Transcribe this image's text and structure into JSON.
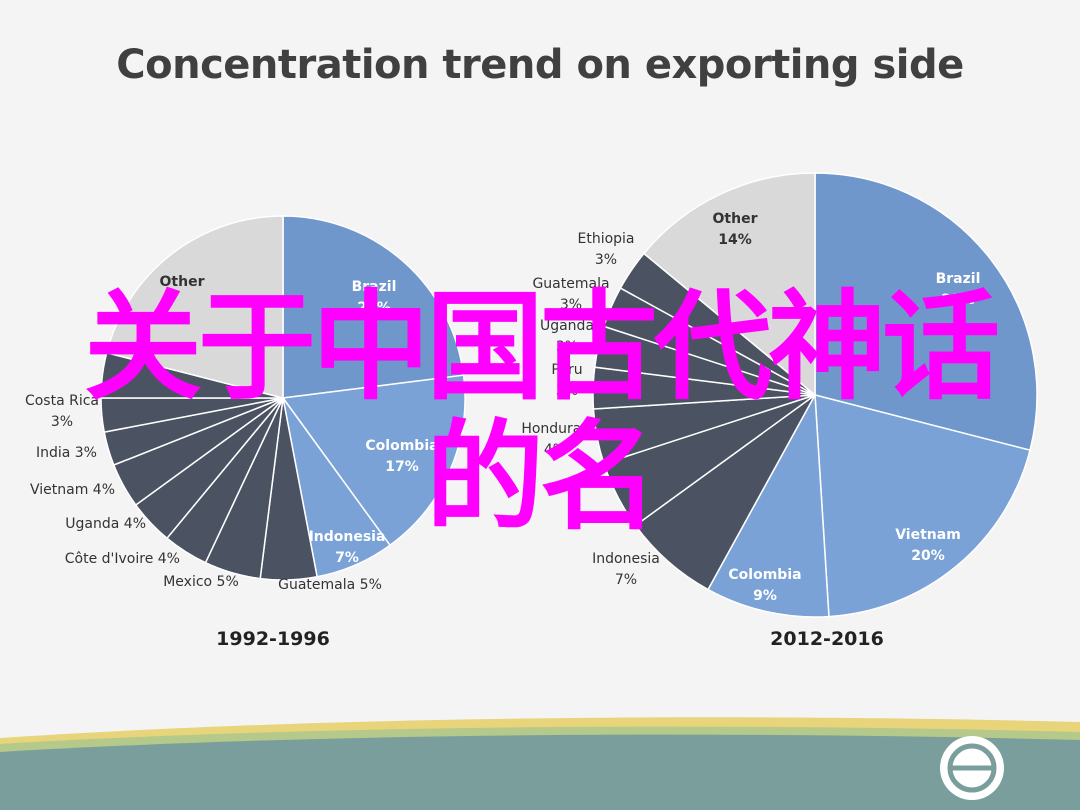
{
  "slide": {
    "title": "Concentration trend on exporting side",
    "overlay_line1": "关于中国古代神话",
    "overlay_line2": "的名"
  },
  "colors": {
    "background": "#f4f4f4",
    "brazil": "#7097cc",
    "country_blue": "#7aa2d6",
    "dark": "#4b5363",
    "other": "#d9d9d9",
    "slice_border": "#ffffff",
    "label_light": "#ffffff",
    "label_dark": "#333333",
    "overlay": "#ff00ff",
    "footer_band": "#7a9e9c",
    "footer_stripe_yellow": "#e8d47a",
    "footer_stripe_green": "#b5c98a"
  },
  "chart_data": [
    {
      "type": "pie",
      "title": "1992-1996",
      "slices": [
        {
          "label": "Brazil",
          "value": 23,
          "value_label": "23%",
          "color": "#7097cc",
          "text": "light"
        },
        {
          "label": "Colombia",
          "value": 17,
          "value_label": "17%",
          "color": "#7aa2d6",
          "text": "light"
        },
        {
          "label": "Indonesia",
          "value": 7,
          "value_label": "7%",
          "color": "#7aa2d6",
          "text": "light"
        },
        {
          "label": "Guatemala",
          "value": 5,
          "value_label": "5%",
          "color": "#4b5363",
          "text": "outside"
        },
        {
          "label": "Mexico",
          "value": 5,
          "value_label": "5%",
          "color": "#4b5363",
          "text": "outside"
        },
        {
          "label": "Côte d'Ivoire",
          "value": 4,
          "value_label": "4%",
          "color": "#4b5363",
          "text": "outside"
        },
        {
          "label": "Uganda",
          "value": 4,
          "value_label": "4%",
          "color": "#4b5363",
          "text": "outside"
        },
        {
          "label": "Vietnam",
          "value": 4,
          "value_label": "4%",
          "color": "#4b5363",
          "text": "outside"
        },
        {
          "label": "India",
          "value": 3,
          "value_label": "3%",
          "color": "#4b5363",
          "text": "outside"
        },
        {
          "label": "Costa Rica",
          "value": 3,
          "value_label": "3%",
          "color": "#4b5363",
          "text": "outside"
        },
        {
          "label": "",
          "value": 4,
          "value_label": "",
          "color": "#4b5363",
          "text": "none"
        },
        {
          "label": "Other",
          "value": 21,
          "value_label": "",
          "color": "#d9d9d9",
          "text": "dark"
        }
      ]
    },
    {
      "type": "pie",
      "title": "2012-2016",
      "slices": [
        {
          "label": "Brazil",
          "value": 29,
          "value_label": "29%",
          "color": "#7097cc",
          "text": "light"
        },
        {
          "label": "Vietnam",
          "value": 20,
          "value_label": "20%",
          "color": "#7aa2d6",
          "text": "light"
        },
        {
          "label": "Colombia",
          "value": 9,
          "value_label": "9%",
          "color": "#7aa2d6",
          "text": "light"
        },
        {
          "label": "Indonesia",
          "value": 7,
          "value_label": "7%",
          "color": "#4b5363",
          "text": "outside"
        },
        {
          "label": "",
          "value": 5,
          "value_label": "",
          "color": "#4b5363",
          "text": "none"
        },
        {
          "label": "Honduras",
          "value": 4,
          "value_label": "4%",
          "color": "#4b5363",
          "text": "outside"
        },
        {
          "label": "Peru",
          "value": 3,
          "value_label": "3%",
          "color": "#4b5363",
          "text": "outside"
        },
        {
          "label": "Uganda",
          "value": 3,
          "value_label": "3%",
          "color": "#4b5363",
          "text": "outside"
        },
        {
          "label": "Guatemala",
          "value": 3,
          "value_label": "3%",
          "color": "#4b5363",
          "text": "outside"
        },
        {
          "label": "Ethiopia",
          "value": 3,
          "value_label": "3%",
          "color": "#4b5363",
          "text": "outside"
        },
        {
          "label": "Other",
          "value": 14,
          "value_label": "14%",
          "color": "#d9d9d9",
          "text": "dark"
        }
      ]
    }
  ]
}
